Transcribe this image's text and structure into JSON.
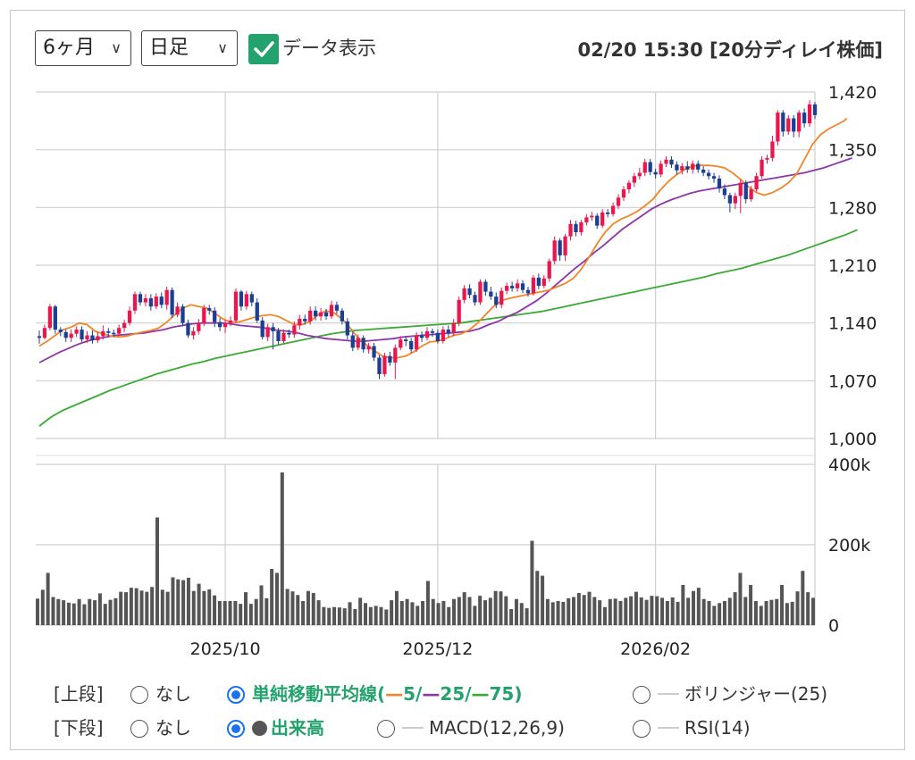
{
  "controls": {
    "period": "6ヶ月",
    "interval": "日足",
    "data_display": "データ表示",
    "timestamp": "02/20 15:30 [20分ディレイ株価]"
  },
  "options": {
    "upper_label": "[上段]",
    "lower_label": "[下段]",
    "none": "なし",
    "sma_label": "単純移動平均線",
    "sma_open": "(",
    "sma_5": "5/",
    "sma_25": "25/",
    "sma_75": "75)",
    "bollinger": "ボリンジャー(25)",
    "volume": "出来高",
    "macd": "MACD(12,26,9)",
    "rsi": "RSI(14)"
  },
  "chart_data": {
    "type": "candlestick",
    "price_axis": {
      "ticks": [
        "1,420",
        "1,350",
        "1,280",
        "1,210",
        "1,140",
        "1,070",
        "1,000"
      ],
      "min": 1000,
      "max": 1420
    },
    "volume_axis": {
      "ticks": [
        "400k",
        "200k",
        "0"
      ],
      "min": 0,
      "max": 400000
    },
    "x_labels": [
      "2025/10",
      "2025/12",
      "2026/02"
    ],
    "x_label_positions": [
      35,
      75,
      116
    ],
    "colors": {
      "up": "#e8184f",
      "down": "#1c3f94",
      "sma5": "#f2842a",
      "sma25": "#8e35a8",
      "sma75": "#3aaa35",
      "volume": "#555555",
      "accent": "#23a26d"
    },
    "candles": [
      [
        1124,
        1122,
        1131,
        1115
      ],
      [
        1122,
        1134,
        1138,
        1120
      ],
      [
        1134,
        1160,
        1163,
        1131
      ],
      [
        1160,
        1132,
        1162,
        1127
      ],
      [
        1132,
        1129,
        1135,
        1124
      ],
      [
        1129,
        1122,
        1132,
        1117
      ],
      [
        1122,
        1127,
        1132,
        1117
      ],
      [
        1127,
        1132,
        1136,
        1123
      ],
      [
        1132,
        1120,
        1136,
        1117
      ],
      [
        1120,
        1125,
        1130,
        1116
      ],
      [
        1125,
        1119,
        1131,
        1115
      ],
      [
        1119,
        1124,
        1129,
        1116
      ],
      [
        1124,
        1130,
        1137,
        1120
      ],
      [
        1130,
        1128,
        1134,
        1123
      ],
      [
        1128,
        1127,
        1132,
        1123
      ],
      [
        1127,
        1134,
        1138,
        1124
      ],
      [
        1134,
        1140,
        1144,
        1129
      ],
      [
        1140,
        1155,
        1160,
        1137
      ],
      [
        1155,
        1175,
        1178,
        1151
      ],
      [
        1175,
        1165,
        1178,
        1161
      ],
      [
        1165,
        1170,
        1175,
        1160
      ],
      [
        1170,
        1160,
        1175,
        1155
      ],
      [
        1160,
        1172,
        1176,
        1157
      ],
      [
        1172,
        1162,
        1177,
        1158
      ],
      [
        1162,
        1180,
        1184,
        1156
      ],
      [
        1180,
        1150,
        1183,
        1146
      ],
      [
        1150,
        1160,
        1165,
        1147
      ],
      [
        1160,
        1140,
        1163,
        1136
      ],
      [
        1140,
        1125,
        1144,
        1122
      ],
      [
        1125,
        1130,
        1135,
        1120
      ],
      [
        1130,
        1140,
        1145,
        1126
      ],
      [
        1140,
        1158,
        1162,
        1136
      ],
      [
        1158,
        1155,
        1162,
        1150
      ],
      [
        1155,
        1141,
        1159,
        1135
      ],
      [
        1141,
        1135,
        1146,
        1130
      ],
      [
        1135,
        1140,
        1144,
        1128
      ],
      [
        1140,
        1143,
        1148,
        1136
      ],
      [
        1143,
        1178,
        1182,
        1140
      ],
      [
        1178,
        1160,
        1180,
        1155
      ],
      [
        1160,
        1175,
        1179,
        1156
      ],
      [
        1175,
        1165,
        1178,
        1160
      ],
      [
        1165,
        1143,
        1170,
        1140
      ],
      [
        1143,
        1123,
        1147,
        1120
      ],
      [
        1123,
        1135,
        1139,
        1118
      ],
      [
        1135,
        1130,
        1140,
        1108
      ],
      [
        1130,
        1118,
        1134,
        1114
      ],
      [
        1118,
        1128,
        1132,
        1115
      ],
      [
        1128,
        1126,
        1132,
        1122
      ],
      [
        1126,
        1137,
        1142,
        1122
      ],
      [
        1137,
        1145,
        1150,
        1132
      ],
      [
        1145,
        1142,
        1150,
        1138
      ],
      [
        1142,
        1155,
        1160,
        1138
      ],
      [
        1155,
        1148,
        1160,
        1143
      ],
      [
        1148,
        1153,
        1158,
        1143
      ],
      [
        1153,
        1148,
        1157,
        1144
      ],
      [
        1148,
        1162,
        1167,
        1145
      ],
      [
        1162,
        1155,
        1166,
        1151
      ],
      [
        1155,
        1142,
        1158,
        1138
      ],
      [
        1142,
        1125,
        1146,
        1120
      ],
      [
        1125,
        1110,
        1130,
        1106
      ],
      [
        1110,
        1122,
        1126,
        1107
      ],
      [
        1122,
        1108,
        1125,
        1104
      ],
      [
        1108,
        1112,
        1116,
        1103
      ],
      [
        1112,
        1098,
        1116,
        1094
      ],
      [
        1098,
        1078,
        1101,
        1072
      ],
      [
        1078,
        1100,
        1104,
        1075
      ],
      [
        1100,
        1092,
        1105,
        1088
      ],
      [
        1092,
        1110,
        1114,
        1072
      ],
      [
        1110,
        1120,
        1124,
        1107
      ],
      [
        1120,
        1118,
        1124,
        1112
      ],
      [
        1118,
        1108,
        1122,
        1104
      ],
      [
        1108,
        1125,
        1129,
        1105
      ],
      [
        1125,
        1122,
        1130,
        1117
      ],
      [
        1122,
        1130,
        1135,
        1119
      ],
      [
        1130,
        1128,
        1133,
        1123
      ],
      [
        1128,
        1118,
        1132,
        1115
      ],
      [
        1118,
        1132,
        1136,
        1115
      ],
      [
        1132,
        1128,
        1137,
        1123
      ],
      [
        1128,
        1140,
        1145,
        1124
      ],
      [
        1140,
        1168,
        1172,
        1136
      ],
      [
        1168,
        1182,
        1186,
        1164
      ],
      [
        1182,
        1174,
        1187,
        1170
      ],
      [
        1174,
        1165,
        1178,
        1161
      ],
      [
        1165,
        1190,
        1193,
        1162
      ],
      [
        1190,
        1178,
        1193,
        1173
      ],
      [
        1178,
        1172,
        1184,
        1168
      ],
      [
        1172,
        1162,
        1177,
        1158
      ],
      [
        1162,
        1179,
        1183,
        1158
      ],
      [
        1179,
        1185,
        1189,
        1175
      ],
      [
        1185,
        1182,
        1190,
        1178
      ],
      [
        1182,
        1188,
        1193,
        1178
      ],
      [
        1188,
        1180,
        1192,
        1176
      ],
      [
        1180,
        1176,
        1184,
        1172
      ],
      [
        1176,
        1195,
        1198,
        1173
      ],
      [
        1195,
        1185,
        1200,
        1181
      ],
      [
        1185,
        1194,
        1198,
        1182
      ],
      [
        1194,
        1215,
        1218,
        1190
      ],
      [
        1215,
        1240,
        1245,
        1211
      ],
      [
        1240,
        1222,
        1243,
        1215
      ],
      [
        1222,
        1245,
        1248,
        1215
      ],
      [
        1245,
        1260,
        1265,
        1240
      ],
      [
        1260,
        1250,
        1264,
        1245
      ],
      [
        1250,
        1262,
        1265,
        1246
      ],
      [
        1262,
        1268,
        1272,
        1258
      ],
      [
        1268,
        1270,
        1275,
        1264
      ],
      [
        1270,
        1258,
        1273,
        1254
      ],
      [
        1258,
        1274,
        1278,
        1255
      ],
      [
        1274,
        1272,
        1278,
        1268
      ],
      [
        1272,
        1282,
        1286,
        1269
      ],
      [
        1282,
        1292,
        1296,
        1278
      ],
      [
        1292,
        1302,
        1306,
        1288
      ],
      [
        1302,
        1310,
        1313,
        1297
      ],
      [
        1310,
        1318,
        1322,
        1305
      ],
      [
        1318,
        1322,
        1328,
        1314
      ],
      [
        1322,
        1335,
        1339,
        1318
      ],
      [
        1335,
        1323,
        1339,
        1319
      ],
      [
        1323,
        1320,
        1327,
        1315
      ],
      [
        1320,
        1333,
        1337,
        1317
      ],
      [
        1333,
        1338,
        1342,
        1329
      ],
      [
        1338,
        1332,
        1342,
        1328
      ],
      [
        1332,
        1325,
        1336,
        1320
      ],
      [
        1325,
        1330,
        1334,
        1320
      ],
      [
        1330,
        1326,
        1336,
        1322
      ],
      [
        1326,
        1333,
        1337,
        1321
      ],
      [
        1333,
        1326,
        1337,
        1322
      ],
      [
        1326,
        1322,
        1330,
        1318
      ],
      [
        1322,
        1318,
        1326,
        1314
      ],
      [
        1318,
        1315,
        1322,
        1310
      ],
      [
        1315,
        1303,
        1319,
        1298
      ],
      [
        1303,
        1295,
        1308,
        1290
      ],
      [
        1295,
        1285,
        1298,
        1274
      ],
      [
        1285,
        1294,
        1298,
        1278
      ],
      [
        1294,
        1310,
        1314,
        1273
      ],
      [
        1310,
        1290,
        1313,
        1285
      ],
      [
        1290,
        1302,
        1306,
        1287
      ],
      [
        1302,
        1318,
        1322,
        1299
      ],
      [
        1318,
        1338,
        1342,
        1315
      ],
      [
        1338,
        1340,
        1344,
        1333
      ],
      [
        1340,
        1360,
        1367,
        1336
      ],
      [
        1360,
        1395,
        1398,
        1355
      ],
      [
        1395,
        1372,
        1398,
        1366
      ],
      [
        1372,
        1388,
        1392,
        1368
      ],
      [
        1388,
        1372,
        1392,
        1365
      ],
      [
        1372,
        1395,
        1398,
        1365
      ],
      [
        1395,
        1382,
        1400,
        1377
      ],
      [
        1382,
        1405,
        1410,
        1378
      ],
      [
        1405,
        1392,
        1408,
        1387
      ]
    ],
    "sma5": [
      1112,
      1118,
      1125,
      1132,
      1135,
      1140,
      1138,
      1130,
      1127,
      1124,
      1123,
      1124,
      1127,
      1129,
      1131,
      1134,
      1141,
      1150,
      1158,
      1162,
      1160,
      1158,
      1152,
      1145,
      1141,
      1141,
      1144,
      1147,
      1149,
      1150,
      1148,
      1143,
      1138,
      1138,
      1142,
      1150,
      1155,
      1152,
      1145,
      1134,
      1122,
      1114,
      1107,
      1100,
      1098,
      1098,
      1100,
      1105,
      1112,
      1117,
      1118,
      1121,
      1125,
      1127,
      1132,
      1140,
      1150,
      1160,
      1167,
      1170,
      1172,
      1174,
      1176,
      1178,
      1180,
      1184,
      1188,
      1194,
      1205,
      1220,
      1236,
      1250,
      1260,
      1266,
      1270,
      1275,
      1282,
      1290,
      1302,
      1312,
      1320,
      1326,
      1330,
      1331,
      1331,
      1330,
      1328,
      1322,
      1314,
      1305,
      1298,
      1295,
      1298,
      1303,
      1310,
      1320,
      1338,
      1356,
      1368,
      1375,
      1380,
      1385,
      1388
    ],
    "sma5_x": [
      0,
      1.5,
      3,
      4.5,
      6,
      7.5,
      9,
      10.5,
      12,
      13.5,
      15,
      16.5,
      18,
      19.5,
      21,
      22.5,
      24,
      25.5,
      27,
      28.5,
      30,
      31.5,
      33,
      34.5,
      36,
      37.5,
      39,
      40.5,
      42,
      43.5,
      45,
      46.5,
      48,
      49.5,
      51,
      52.5,
      54,
      55.5,
      57,
      58.5,
      60,
      61.5,
      63,
      64.5,
      66,
      67.5,
      69,
      70.5,
      72,
      73.5,
      75,
      76.5,
      78,
      79.5,
      81,
      82.5,
      84,
      85.5,
      87,
      88.5,
      90,
      91.5,
      93,
      94.5,
      96,
      97.5,
      99,
      100.5,
      102,
      103.5,
      105,
      106.5,
      108,
      109.5,
      111,
      112.5,
      114,
      115.5,
      117,
      118.5,
      120,
      121.5,
      123,
      124.5,
      126,
      127.5,
      129,
      130.5,
      132,
      133.5,
      135,
      136.5,
      138,
      139.5,
      141,
      142.5,
      144,
      145.5,
      147,
      148.5,
      150,
      151.5,
      152
    ],
    "sma25": [
      1092,
      1098,
      1104,
      1109,
      1114,
      1118,
      1121,
      1123,
      1125,
      1126,
      1127,
      1128,
      1130,
      1132,
      1135,
      1137,
      1139,
      1140,
      1140,
      1140,
      1139,
      1137,
      1136,
      1135,
      1133,
      1131,
      1130,
      1128,
      1125,
      1123,
      1121,
      1120,
      1119,
      1118,
      1118,
      1119,
      1120,
      1121,
      1123,
      1124,
      1125,
      1126,
      1127,
      1128,
      1129,
      1130,
      1133,
      1138,
      1142,
      1148,
      1153,
      1160,
      1167,
      1176,
      1186,
      1196,
      1206,
      1215,
      1225,
      1234,
      1244,
      1254,
      1262,
      1270,
      1278,
      1284,
      1289,
      1293,
      1297,
      1300,
      1302,
      1304,
      1306,
      1308,
      1310,
      1312,
      1314,
      1316,
      1318,
      1320,
      1322,
      1325,
      1328,
      1332,
      1336,
      1340
    ],
    "sma25_step": 1.8,
    "sma75": [
      1015,
      1026,
      1034,
      1040,
      1046,
      1052,
      1058,
      1063,
      1068,
      1073,
      1078,
      1082,
      1086,
      1090,
      1093,
      1097,
      1100,
      1103,
      1106,
      1109,
      1112,
      1115,
      1118,
      1121,
      1124,
      1127,
      1129,
      1131,
      1132,
      1133,
      1134,
      1135,
      1136,
      1137,
      1138,
      1139,
      1140,
      1142,
      1144,
      1146,
      1148,
      1150,
      1152,
      1154,
      1157,
      1160,
      1163,
      1166,
      1169,
      1172,
      1175,
      1178,
      1181,
      1184,
      1187,
      1190,
      1193,
      1196,
      1200,
      1203,
      1206,
      1210,
      1214,
      1218,
      1222,
      1227,
      1232,
      1237,
      1242,
      1247,
      1253
    ],
    "sma75_step": 2.2,
    "volume": [
      66,
      88,
      130,
      70,
      65,
      62,
      56,
      54,
      65,
      52,
      65,
      62,
      79,
      53,
      63,
      67,
      83,
      82,
      93,
      92,
      86,
      83,
      95,
      268,
      88,
      83,
      119,
      114,
      112,
      118,
      85,
      103,
      85,
      89,
      74,
      60,
      60,
      60,
      60,
      53,
      82,
      53,
      65,
      99,
      67,
      140,
      130,
      380,
      90,
      84,
      75,
      60,
      85,
      80,
      62,
      45,
      43,
      45,
      44,
      42,
      57,
      40,
      68,
      55,
      45,
      48,
      45,
      39,
      62,
      85,
      60,
      65,
      57,
      48,
      60,
      110,
      65,
      55,
      60,
      45,
      65,
      70,
      82,
      70,
      48,
      73,
      62,
      68,
      85,
      84,
      72,
      40,
      65,
      55,
      42,
      210,
      135,
      123,
      65,
      57,
      60,
      58,
      67,
      70,
      80,
      75,
      83,
      70,
      62,
      45,
      65,
      66,
      60,
      68,
      72,
      83,
      69,
      63,
      73,
      72,
      68,
      60,
      69,
      58,
      100,
      68,
      85,
      93,
      65,
      60,
      48,
      55,
      60,
      68,
      82,
      130,
      70,
      100,
      60,
      48,
      60,
      63,
      65,
      100,
      55,
      58,
      84,
      135,
      82,
      68
    ],
    "volume_unit": "thousand shares"
  }
}
